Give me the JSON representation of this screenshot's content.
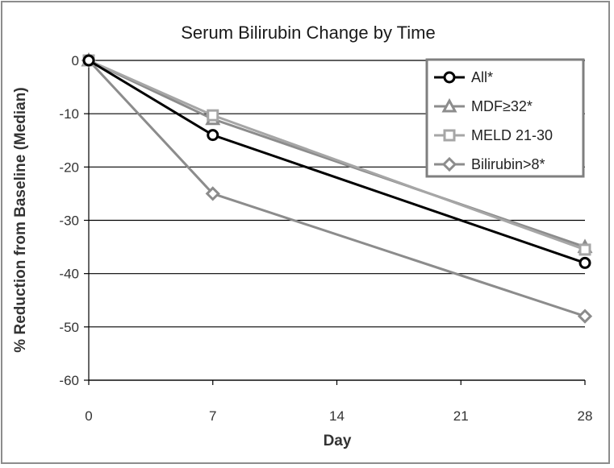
{
  "chart_data": {
    "type": "line",
    "title": "Serum Bilirubin Change by Time",
    "xlabel": "Day",
    "ylabel": "% Reduction from Baseline (Median)",
    "x": [
      0,
      7,
      28
    ],
    "x_ticks": [
      0,
      7,
      14,
      21,
      28
    ],
    "x_tick_labels": [
      "0",
      "7",
      "14",
      "21",
      "28"
    ],
    "xlim": [
      0,
      28
    ],
    "ylim": [
      -60,
      0
    ],
    "y_ticks": [
      0,
      -10,
      -20,
      -30,
      -40,
      -50,
      -60
    ],
    "y_tick_labels": [
      "0",
      "-10",
      "-20",
      "-30",
      "-40",
      "-50",
      "-60"
    ],
    "grid": "horizontal",
    "legend_position": "top-right",
    "series": [
      {
        "name": "All*",
        "values": [
          0,
          -14,
          -38
        ],
        "color": "#000000",
        "marker": "circle"
      },
      {
        "name": "MDF≥32*",
        "values": [
          0,
          -11,
          -35
        ],
        "color": "#8c8c8c",
        "marker": "triangle"
      },
      {
        "name": "MELD 21-30",
        "values": [
          0,
          -10.3,
          -35.5
        ],
        "color": "#a6a6a6",
        "marker": "square"
      },
      {
        "name": "Bilirubin>8*",
        "values": [
          0,
          -25,
          -48
        ],
        "color": "#8c8c8c",
        "marker": "diamond"
      }
    ]
  }
}
